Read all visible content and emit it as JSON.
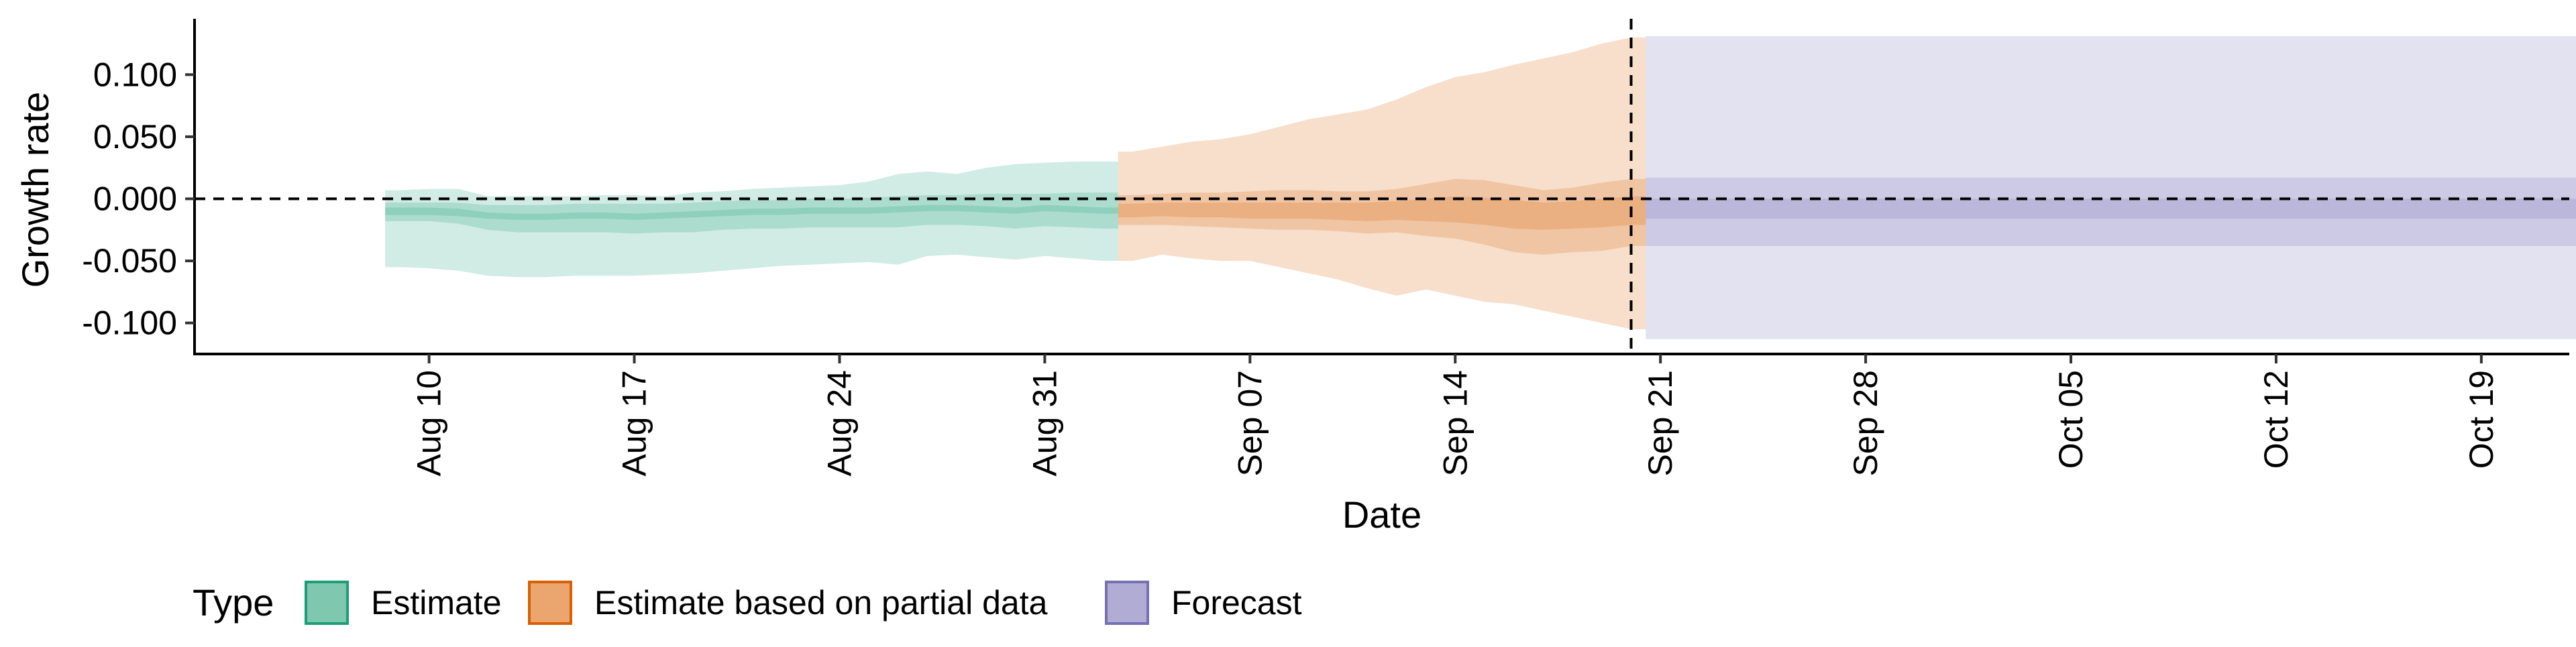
{
  "chart_data": {
    "type": "area",
    "xlabel": "Date",
    "ylabel": "Growth rate",
    "ylim": [
      -0.125,
      0.145
    ],
    "y_ticks": [
      -0.1,
      -0.05,
      0.0,
      0.05,
      0.1
    ],
    "y_tick_labels": [
      "-0.100",
      "-0.050",
      "0.000",
      "0.050",
      "0.100"
    ],
    "x_range": [
      "2021-08-02",
      "2021-10-22"
    ],
    "x_ticks": [
      "2021-08-10",
      "2021-08-17",
      "2021-08-24",
      "2021-08-31",
      "2021-09-07",
      "2021-09-14",
      "2021-09-21",
      "2021-09-28",
      "2021-10-05",
      "2021-10-12",
      "2021-10-19"
    ],
    "x_tick_labels": [
      "Aug 10",
      "Aug 17",
      "Aug 24",
      "Aug 31",
      "Sep 07",
      "Sep 14",
      "Sep 21",
      "Sep 28",
      "Oct 05",
      "Oct 12",
      "Oct 19"
    ],
    "hline_y": 0.0,
    "vline_x": "2021-09-20",
    "grid": false,
    "legend": {
      "title": "Type",
      "position": "bottom-left",
      "entries": [
        {
          "label": "Estimate",
          "fill": "#7fc7ae",
          "stroke": "#1b9e77"
        },
        {
          "label": "Estimate based on partial data",
          "fill": "#eba56e",
          "stroke": "#d95f02"
        },
        {
          "label": "Forecast",
          "fill": "#b0acd4",
          "stroke": "#7570b3"
        }
      ]
    },
    "series": [
      {
        "name": "Estimate",
        "color": "#1b9e77",
        "x": [
          "2021-08-09",
          "2021-08-10",
          "2021-08-11",
          "2021-08-12",
          "2021-08-13",
          "2021-08-14",
          "2021-08-15",
          "2021-08-16",
          "2021-08-17",
          "2021-08-18",
          "2021-08-19",
          "2021-08-20",
          "2021-08-21",
          "2021-08-22",
          "2021-08-23",
          "2021-08-24",
          "2021-08-25",
          "2021-08-26",
          "2021-08-27",
          "2021-08-28",
          "2021-08-29",
          "2021-08-30",
          "2021-08-31",
          "2021-09-01",
          "2021-09-02"
        ],
        "lower90": [
          -0.055,
          -0.056,
          -0.058,
          -0.062,
          -0.063,
          -0.063,
          -0.062,
          -0.062,
          -0.062,
          -0.061,
          -0.06,
          -0.058,
          -0.056,
          -0.054,
          -0.053,
          -0.052,
          -0.051,
          -0.053,
          -0.046,
          -0.045,
          -0.047,
          -0.049,
          -0.046,
          -0.048,
          -0.05
        ],
        "upper90": [
          0.007,
          0.008,
          0.008,
          0.002,
          0.002,
          0.002,
          0.002,
          0.003,
          0.003,
          0.002,
          0.005,
          0.006,
          0.008,
          0.009,
          0.01,
          0.011,
          0.014,
          0.02,
          0.022,
          0.02,
          0.025,
          0.028,
          0.029,
          0.03,
          0.03
        ],
        "lower50": [
          -0.018,
          -0.018,
          -0.02,
          -0.025,
          -0.027,
          -0.027,
          -0.027,
          -0.027,
          -0.028,
          -0.027,
          -0.027,
          -0.025,
          -0.024,
          -0.024,
          -0.023,
          -0.023,
          -0.023,
          -0.023,
          -0.021,
          -0.021,
          -0.022,
          -0.024,
          -0.022,
          -0.023,
          -0.024
        ],
        "upper50": [
          -0.003,
          -0.003,
          -0.003,
          -0.005,
          -0.005,
          -0.005,
          -0.004,
          -0.004,
          -0.004,
          -0.004,
          -0.003,
          -0.002,
          -0.001,
          -0.001,
          0.0,
          0.0,
          0.001,
          0.002,
          0.003,
          0.003,
          0.004,
          0.004,
          0.004,
          0.005,
          0.005
        ],
        "lower20": [
          -0.013,
          -0.013,
          -0.014,
          -0.016,
          -0.017,
          -0.017,
          -0.016,
          -0.016,
          -0.017,
          -0.016,
          -0.015,
          -0.014,
          -0.013,
          -0.013,
          -0.012,
          -0.012,
          -0.012,
          -0.011,
          -0.01,
          -0.01,
          -0.011,
          -0.012,
          -0.01,
          -0.011,
          -0.012
        ],
        "upper20": [
          -0.007,
          -0.007,
          -0.008,
          -0.011,
          -0.012,
          -0.012,
          -0.011,
          -0.011,
          -0.012,
          -0.011,
          -0.01,
          -0.009,
          -0.008,
          -0.008,
          -0.007,
          -0.007,
          -0.007,
          -0.006,
          -0.005,
          -0.005,
          -0.006,
          -0.007,
          -0.005,
          -0.006,
          -0.007
        ]
      },
      {
        "name": "Estimate based on partial data",
        "color": "#d95f02",
        "x": [
          "2021-09-03",
          "2021-09-04",
          "2021-09-05",
          "2021-09-06",
          "2021-09-07",
          "2021-09-08",
          "2021-09-09",
          "2021-09-10",
          "2021-09-11",
          "2021-09-12",
          "2021-09-13",
          "2021-09-14",
          "2021-09-15",
          "2021-09-16",
          "2021-09-17",
          "2021-09-18",
          "2021-09-19",
          "2021-09-20"
        ],
        "lower90": [
          -0.05,
          -0.045,
          -0.048,
          -0.05,
          -0.05,
          -0.055,
          -0.06,
          -0.065,
          -0.072,
          -0.078,
          -0.073,
          -0.078,
          -0.083,
          -0.085,
          -0.09,
          -0.095,
          -0.1,
          -0.105
        ],
        "upper90": [
          0.038,
          0.042,
          0.046,
          0.048,
          0.052,
          0.058,
          0.064,
          0.068,
          0.072,
          0.08,
          0.09,
          0.098,
          0.102,
          0.108,
          0.113,
          0.118,
          0.125,
          0.13
        ],
        "lower50": [
          -0.021,
          -0.021,
          -0.022,
          -0.023,
          -0.024,
          -0.025,
          -0.025,
          -0.026,
          -0.028,
          -0.027,
          -0.03,
          -0.032,
          -0.037,
          -0.043,
          -0.045,
          -0.043,
          -0.042,
          -0.038
        ],
        "upper50": [
          0.003,
          0.004,
          0.005,
          0.005,
          0.006,
          0.007,
          0.007,
          0.006,
          0.006,
          0.008,
          0.012,
          0.016,
          0.015,
          0.011,
          0.007,
          0.009,
          0.013,
          0.016
        ],
        "lower20": [
          -0.015,
          -0.014,
          -0.015,
          -0.015,
          -0.016,
          -0.016,
          -0.016,
          -0.017,
          -0.018,
          -0.017,
          -0.018,
          -0.019,
          -0.021,
          -0.024,
          -0.025,
          -0.024,
          -0.023,
          -0.021
        ],
        "upper20": [
          -0.004,
          -0.003,
          -0.003,
          -0.003,
          -0.003,
          -0.003,
          -0.003,
          -0.003,
          -0.003,
          -0.002,
          0.0,
          0.002,
          0.001,
          -0.001,
          -0.003,
          -0.002,
          0.0,
          0.002
        ]
      },
      {
        "name": "Forecast",
        "color": "#7570b3",
        "x": [
          "2021-09-21",
          "2021-10-22"
        ],
        "lower90": [
          -0.113,
          -0.113
        ],
        "upper90": [
          0.131,
          0.131
        ],
        "lower50": [
          -0.038,
          -0.038
        ],
        "upper50": [
          0.017,
          0.017
        ],
        "lower20": [
          -0.016,
          -0.016
        ],
        "upper20": [
          0.0,
          0.0
        ]
      }
    ]
  }
}
